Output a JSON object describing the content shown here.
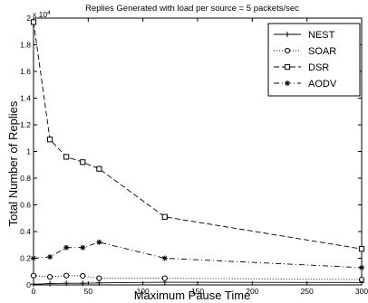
{
  "chart_data": {
    "type": "line",
    "title": "Replies Generated with load per source =  5 packets/sec",
    "xlabel": "Maximum Pause Time",
    "ylabel": "Total Number of Replies",
    "y_multiplier": "x 10",
    "y_multiplier_exp": "4",
    "xlim": [
      0,
      300
    ],
    "ylim": [
      0,
      2
    ],
    "x_ticks": [
      0,
      50,
      100,
      150,
      200,
      250,
      300
    ],
    "x_tick_labels": [
      "0",
      "50",
      "100",
      "150",
      "200",
      "250",
      "300"
    ],
    "y_ticks": [
      0,
      0.2,
      0.4,
      0.6,
      0.8,
      1.0,
      1.2,
      1.4,
      1.6,
      1.8,
      2.0
    ],
    "y_tick_labels": [
      "0",
      "0.2",
      "0.4",
      "0.6",
      "0.8",
      "1",
      "1.2",
      "1.4",
      "1.6",
      "1.8",
      "2"
    ],
    "grid": false,
    "legend_position": "top-right",
    "series": [
      {
        "name": "NEST",
        "marker": "plus",
        "dash": "solid",
        "x": [
          0,
          15,
          30,
          45,
          60,
          120,
          300
        ],
        "y": [
          0.005,
          0.01,
          0.012,
          0.012,
          0.015,
          0.02,
          0.018
        ]
      },
      {
        "name": "SOAR",
        "marker": "circle",
        "dash": "dotted",
        "x": [
          0,
          15,
          30,
          45,
          60,
          120,
          300
        ],
        "y": [
          0.07,
          0.06,
          0.07,
          0.068,
          0.05,
          0.05,
          0.04
        ]
      },
      {
        "name": "DSR",
        "marker": "square",
        "dash": "dashed",
        "x": [
          0,
          15,
          30,
          45,
          60,
          120,
          300
        ],
        "y": [
          1.97,
          1.09,
          0.96,
          0.92,
          0.87,
          0.51,
          0.27
        ]
      },
      {
        "name": "AODV",
        "marker": "star",
        "dash": "dashdot",
        "x": [
          0,
          15,
          30,
          45,
          60,
          120,
          300
        ],
        "y": [
          0.2,
          0.21,
          0.28,
          0.28,
          0.32,
          0.2,
          0.13
        ]
      }
    ]
  }
}
